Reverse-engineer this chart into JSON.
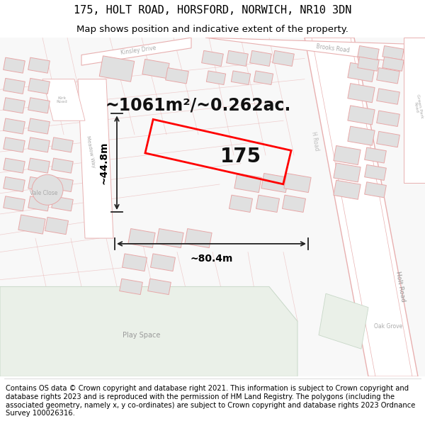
{
  "title_line1": "175, HOLT ROAD, HORSFORD, NORWICH, NR10 3DN",
  "title_line2": "Map shows position and indicative extent of the property.",
  "area_text": "~1061m²/~0.262ac.",
  "property_number": "175",
  "dim_width": "~80.4m",
  "dim_height": "~44.8m",
  "footer_text": "Contains OS data © Crown copyright and database right 2021. This information is subject to Crown copyright and database rights 2023 and is reproduced with the permission of HM Land Registry. The polygons (including the associated geometry, namely x, y co-ordinates) are subject to Crown copyright and database rights 2023 Ordnance Survey 100026316.",
  "map_bg": "#f8f8f8",
  "road_fill": "#ffffff",
  "road_stroke": "#e8b0b0",
  "block_fill": "#e0e0e0",
  "block_stroke": "#e8a8a8",
  "green_fill": "#eaf0e8",
  "green_stroke": "#c8d8c8",
  "property_color": "#ff0000",
  "dim_color": "#222222",
  "text_label_color": "#cc9999",
  "road_label_color": "#aaaaaa",
  "title_fontsize": 11,
  "subtitle_fontsize": 9.5,
  "area_fontsize": 17,
  "number_fontsize": 20,
  "dim_fontsize": 10,
  "footer_fontsize": 7.2,
  "figwidth": 6.0,
  "figheight": 6.25,
  "dpi": 100
}
